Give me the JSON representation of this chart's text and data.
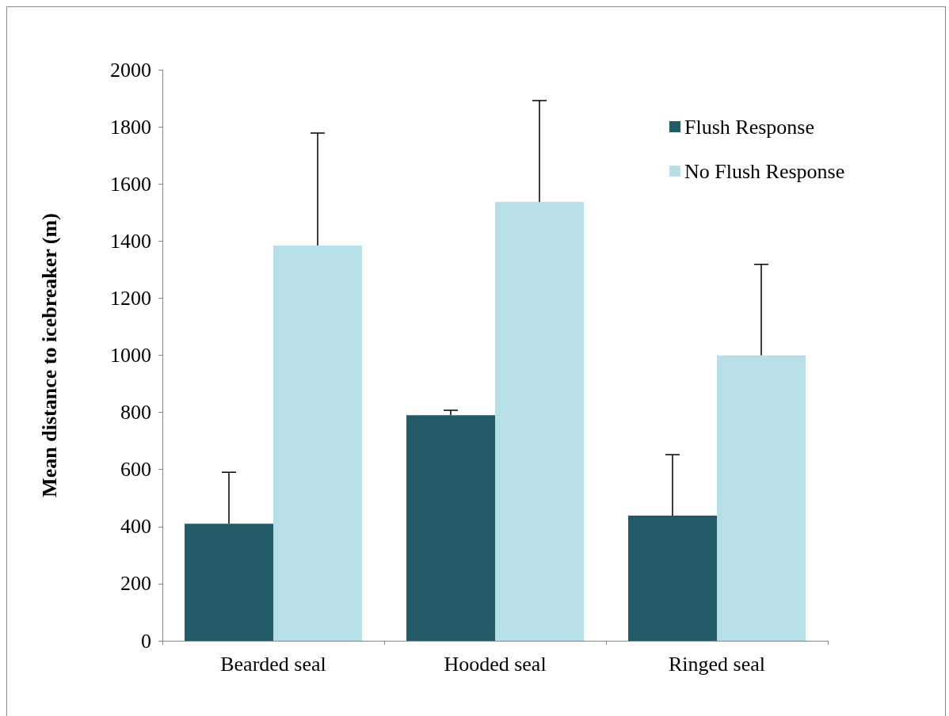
{
  "chart_data": {
    "type": "bar",
    "ylabel": "Mean distance to icebreaker (m)",
    "categories": [
      "Bearded seal",
      "Hooded seal",
      "Ringed seal"
    ],
    "series": [
      {
        "name": "Flush Response",
        "color": "#235a68",
        "values": [
          410,
          790,
          438
        ],
        "errors": [
          [
            410,
            590
          ],
          [
            790,
            807
          ],
          [
            438,
            652
          ]
        ]
      },
      {
        "name": "No Flush Response",
        "color": "#b7dfe8",
        "values": [
          1384,
          1537,
          999
        ],
        "errors": [
          [
            1384,
            1778
          ],
          [
            1537,
            1892
          ],
          [
            999,
            1318
          ]
        ]
      }
    ],
    "ylim": [
      0,
      2000
    ],
    "yticks": [
      0,
      200,
      400,
      600,
      800,
      1000,
      1200,
      1400,
      1600,
      1800,
      2000
    ],
    "grid": false,
    "legend": "top right"
  }
}
